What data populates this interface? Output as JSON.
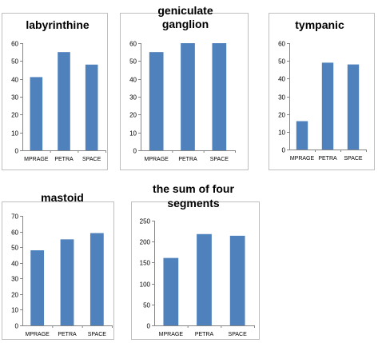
{
  "chart_data": [
    {
      "type": "bar",
      "title_lines": [
        "labyrinthine"
      ],
      "categories": [
        "MPRAGE",
        "PETRA",
        "SPACE"
      ],
      "values": [
        41,
        55,
        48
      ],
      "ylim": [
        0,
        60
      ],
      "yticks": [
        0,
        10,
        20,
        30,
        40,
        50,
        60
      ],
      "bar_color": "#4f81bd",
      "grid": false
    },
    {
      "type": "bar",
      "title_lines": [
        "geniculate",
        "ganglion"
      ],
      "categories": [
        "MPRAGE",
        "PETRA",
        "SPACE"
      ],
      "values": [
        55,
        60,
        60
      ],
      "ylim": [
        0,
        60
      ],
      "yticks": [
        0,
        10,
        20,
        30,
        40,
        50,
        60
      ],
      "bar_color": "#4f81bd",
      "grid": false
    },
    {
      "type": "bar",
      "title_lines": [
        "tympanic"
      ],
      "categories": [
        "MPRAGE",
        "PETRA",
        "SPACE"
      ],
      "values": [
        16,
        49,
        48
      ],
      "ylim": [
        0,
        60
      ],
      "yticks": [
        0,
        10,
        20,
        30,
        40,
        50,
        60
      ],
      "bar_color": "#4f81bd",
      "grid": false
    },
    {
      "type": "bar",
      "title_lines": [
        "mastoid"
      ],
      "categories": [
        "MPRAGE",
        "PETRA",
        "SPACE"
      ],
      "values": [
        48,
        55,
        59
      ],
      "ylim": [
        0,
        70
      ],
      "yticks": [
        0,
        10,
        20,
        30,
        40,
        50,
        60,
        70
      ],
      "bar_color": "#4f81bd",
      "grid": false
    },
    {
      "type": "bar",
      "title_lines": [
        "the sum of four",
        "segments"
      ],
      "categories": [
        "MPRAGE",
        "PETRA",
        "SPACE"
      ],
      "values": [
        161,
        218,
        214
      ],
      "ylim": [
        0,
        250
      ],
      "yticks": [
        0,
        50,
        100,
        150,
        200,
        250
      ],
      "bar_color": "#4f81bd",
      "grid": false
    }
  ]
}
